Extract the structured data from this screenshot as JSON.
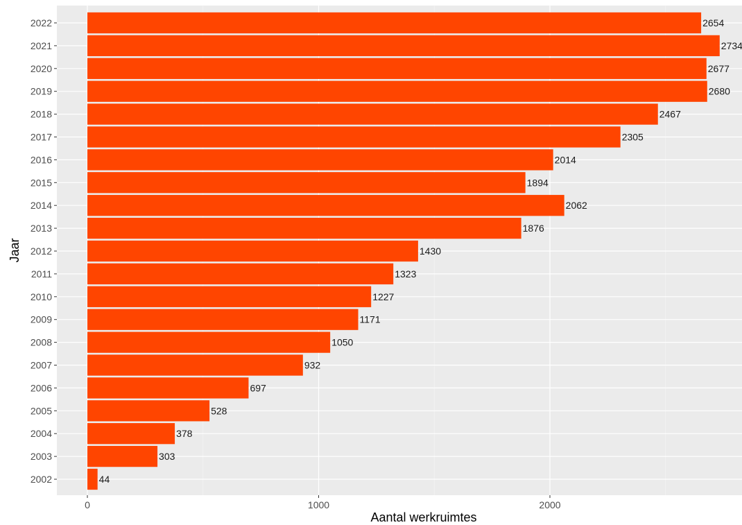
{
  "chart_data": {
    "type": "bar",
    "orientation": "horizontal",
    "categories": [
      "2002",
      "2003",
      "2004",
      "2005",
      "2006",
      "2007",
      "2008",
      "2009",
      "2010",
      "2011",
      "2012",
      "2013",
      "2014",
      "2015",
      "2016",
      "2017",
      "2018",
      "2019",
      "2020",
      "2021",
      "2022"
    ],
    "values": [
      44,
      303,
      378,
      528,
      697,
      932,
      1050,
      1171,
      1227,
      1323,
      1430,
      1876,
      2062,
      1894,
      2014,
      2305,
      2467,
      2680,
      2677,
      2734,
      2654
    ],
    "xlabel": "Aantal werkruimtes",
    "ylabel": "Jaar",
    "xlim": [
      0,
      2800
    ],
    "x_ticks": [
      "0",
      "1000",
      "2000"
    ],
    "grid": true,
    "colors": {
      "bar": "#ff4500",
      "panel": "#ebebeb",
      "grid_major": "#ffffff",
      "grid_minor": "#f5f5f5"
    }
  }
}
